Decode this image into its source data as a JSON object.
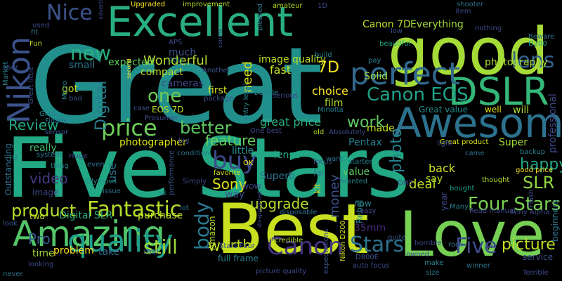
{
  "words": [
    {
      "text": "Great",
      "color": "#21908d"
    },
    {
      "text": "Five Stars",
      "color": "#22a884"
    },
    {
      "text": "good",
      "color": "#a5db36"
    },
    {
      "text": "Best",
      "color": "#c8e020"
    },
    {
      "text": "Love",
      "color": "#75d054"
    },
    {
      "text": "Excellent",
      "color": "#29af7f"
    },
    {
      "text": "Awesome",
      "color": "#2c728e"
    },
    {
      "text": "DSLR",
      "color": "#35b779"
    },
    {
      "text": "Amazing",
      "color": "#52c569"
    },
    {
      "text": "Nikon",
      "color": "#3b528b"
    },
    {
      "text": "perfect",
      "color": "#31688e"
    },
    {
      "text": "Nice",
      "color": "#3b528b"
    },
    {
      "text": "price",
      "color": "#6ece58"
    },
    {
      "text": "quality",
      "color": "#1f9e89"
    },
    {
      "text": "Canon",
      "color": "#46337f"
    },
    {
      "text": "Fantastic",
      "color": "#b5de2b"
    },
    {
      "text": "Stars",
      "color": "#2c728e"
    },
    {
      "text": "Five",
      "color": "#3e4989"
    },
    {
      "text": "Four Stars",
      "color": "#7ad151"
    },
    {
      "text": "better",
      "color": "#5ec962"
    },
    {
      "text": "one",
      "color": "#6ece58"
    },
    {
      "text": "buy",
      "color": "#3e4a89"
    },
    {
      "text": "lens",
      "color": "#34618d"
    },
    {
      "text": "Canon EOS",
      "color": "#1fa188"
    },
    {
      "text": "new",
      "color": "#29af7f"
    },
    {
      "text": "need",
      "color": "#d8e219"
    },
    {
      "text": "Wonderful",
      "color": "#b2dd2d"
    },
    {
      "text": "SLR",
      "color": "#90d743"
    },
    {
      "text": "upgrade",
      "color": "#b5de2b"
    },
    {
      "text": "product",
      "color": "#b5de2b"
    },
    {
      "text": "body",
      "color": "#2a788e"
    },
    {
      "text": "still",
      "color": "#9fda3a"
    },
    {
      "text": "worth",
      "color": "#c2df23"
    },
    {
      "text": "picture",
      "color": "#bddf26"
    },
    {
      "text": "video",
      "color": "#443b84"
    },
    {
      "text": "Review",
      "color": "#22a884"
    },
    {
      "text": "happy",
      "color": "#21a685"
    },
    {
      "text": "feature",
      "color": "#65cb5e"
    },
    {
      "text": "Pro",
      "color": "#375b8d"
    },
    {
      "text": "work",
      "color": "#5ec962"
    },
    {
      "text": "Sony",
      "color": "#dde318"
    },
    {
      "text": "fast",
      "color": "#c8e020"
    },
    {
      "text": "7D",
      "color": "#fde725"
    },
    {
      "text": "image quality",
      "color": "#bddf26"
    },
    {
      "text": "photography",
      "color": "#a8db34"
    },
    {
      "text": "Digital",
      "color": "#287c8e"
    },
    {
      "text": "compact",
      "color": "#b8de29"
    },
    {
      "text": "expected",
      "color": "#5ec962"
    },
    {
      "text": "photographer",
      "color": "#dde318"
    },
    {
      "text": "choice",
      "color": "#fde725"
    },
    {
      "text": "great price",
      "color": "#2ab07f"
    },
    {
      "text": "money",
      "color": "#3b528b"
    },
    {
      "text": "photo",
      "color": "#26828e"
    },
    {
      "text": "deal",
      "color": "#c0df25"
    },
    {
      "text": "Pentax",
      "color": "#26828e"
    },
    {
      "text": "use",
      "color": "#2c738e"
    },
    {
      "text": "little",
      "color": "#24878e"
    },
    {
      "text": "lense",
      "color": "#22a884"
    },
    {
      "text": "Superb",
      "color": "#2c738e"
    },
    {
      "text": "way",
      "color": "#3b528b"
    },
    {
      "text": "value",
      "color": "#5ec962"
    },
    {
      "text": "made",
      "color": "#c2df23"
    },
    {
      "text": "Canon 7D",
      "color": "#bddf26"
    },
    {
      "text": "Everything",
      "color": "#a0da39"
    },
    {
      "text": "Solid",
      "color": "#9fda3a"
    },
    {
      "text": "back",
      "color": "#d0e11c"
    },
    {
      "text": "say",
      "color": "#b5de2b"
    },
    {
      "text": "Super",
      "color": "#a2da37"
    },
    {
      "text": "first",
      "color": "#d5e21a"
    },
    {
      "text": "film",
      "color": "#b2dd2d"
    },
    {
      "text": "cameras",
      "color": "#3e4a89"
    },
    {
      "text": "EOS 7D",
      "color": "#b5de2b"
    },
    {
      "text": "got",
      "color": "#bddf26"
    },
    {
      "text": "small",
      "color": "#2c728e"
    },
    {
      "text": "really",
      "color": "#42be71"
    },
    {
      "text": "purchase",
      "color": "#b8de29"
    },
    {
      "text": "Digital SLR",
      "color": "#2ab07f"
    },
    {
      "text": "problem",
      "color": "#fde725"
    },
    {
      "text": "time",
      "color": "#9fda3a"
    },
    {
      "text": "take",
      "color": "#31688e"
    },
    {
      "text": "Amazon",
      "color": "#b5de2b"
    },
    {
      "text": "35mm",
      "color": "#482878"
    },
    {
      "text": "Rebel",
      "color": "#26828e"
    },
    {
      "text": "now",
      "color": "#26828e"
    },
    {
      "text": "image",
      "color": "#3f4788"
    },
    {
      "text": "two",
      "color": "#c8e020"
    },
    {
      "text": "much",
      "color": "#3b528b"
    },
    {
      "text": "Great value",
      "color": "#21908d"
    },
    {
      "text": "well",
      "color": "#dde318"
    },
    {
      "text": "will",
      "color": "#a8db34"
    },
    {
      "text": "Great product",
      "color": "#dde318"
    },
    {
      "text": "good price",
      "color": "#fde725"
    },
    {
      "text": "professional",
      "color": "#3e4a89"
    },
    {
      "text": "beginners",
      "color": "#2c728e"
    },
    {
      "text": "service",
      "color": "#3b528b"
    },
    {
      "text": "Beware",
      "color": "#2c728e"
    },
    {
      "text": "D200",
      "color": "#1f9e89"
    },
    {
      "text": "beautiful",
      "color": "#22a884"
    },
    {
      "text": "Olympus",
      "color": "#24878e"
    },
    {
      "text": "Minolta",
      "color": "#26828e"
    },
    {
      "text": "Outstanding",
      "color": "#2c728e"
    },
    {
      "text": "kit",
      "color": "#c2df23"
    },
    {
      "text": "far",
      "color": "#2a788e"
    },
    {
      "text": "year",
      "color": "#3e4989"
    },
    {
      "text": "bought",
      "color": "#1f9e89"
    },
    {
      "text": "came",
      "color": "#2c728e"
    },
    {
      "text": "thought",
      "color": "#b5de2b"
    },
    {
      "text": "Sony Alpha",
      "color": "#3e4989"
    },
    {
      "text": "full frame",
      "color": "#26828e"
    },
    {
      "text": "Stars Four",
      "color": "#3b528b"
    },
    {
      "text": "Incredible",
      "color": "#b2dd2d"
    },
    {
      "text": "Nikon D200",
      "color": "#d0e11c"
    },
    {
      "text": "D800E",
      "color": "#3b528b"
    },
    {
      "text": "auto focus",
      "color": "#3e4989"
    },
    {
      "text": "expectations",
      "color": "#3b528b"
    },
    {
      "text": "picture quality",
      "color": "#3e4989"
    },
    {
      "text": "make",
      "color": "#26828e"
    },
    {
      "text": "size",
      "color": "#2c728e"
    },
    {
      "text": "winner",
      "color": "#2c728e"
    },
    {
      "text": "Terrible",
      "color": "#3e4989"
    },
    {
      "text": "never",
      "color": "#2c728e"
    },
    {
      "text": "looking",
      "color": "#3e4989"
    },
    {
      "text": "Micro",
      "color": "#26828e"
    },
    {
      "text": "look",
      "color": "#3b528b"
    },
    {
      "text": "bad",
      "color": "#3b528b"
    },
    {
      "text": "Fun",
      "color": "#c2df23"
    },
    {
      "text": "fit",
      "color": "#2c728e"
    },
    {
      "text": "used",
      "color": "#3e4989"
    },
    {
      "text": "Market",
      "color": "#26828e"
    },
    {
      "text": "user",
      "color": "#3b528b"
    },
    {
      "text": "Great little",
      "color": "#3e4989"
    },
    {
      "text": "Glad",
      "color": "#26828e"
    },
    {
      "text": "Finally",
      "color": "#2c728e"
    },
    {
      "text": "sensor",
      "color": "#3b528b"
    },
    {
      "text": "IQ",
      "color": "#26828e"
    },
    {
      "text": "system",
      "color": "#2c728e"
    },
    {
      "text": "thing",
      "color": "#26828e"
    },
    {
      "text": "Huge",
      "color": "#3e4989"
    },
    {
      "text": "even",
      "color": "#2c728e"
    },
    {
      "text": "vs",
      "color": "#26828e"
    },
    {
      "text": "issue",
      "color": "#2c728e"
    },
    {
      "text": "Simply",
      "color": "#3e4989"
    },
    {
      "text": "favorite",
      "color": "#d0e11c"
    },
    {
      "text": "OK",
      "color": "#fde725"
    },
    {
      "text": "WOW",
      "color": "#3e4989"
    },
    {
      "text": "performance",
      "color": "#3b528b"
    },
    {
      "text": "condition",
      "color": "#2c728e"
    },
    {
      "text": "big",
      "color": "#3e4989"
    },
    {
      "text": "Another",
      "color": "#3b528b"
    },
    {
      "text": "20D",
      "color": "#26828e"
    },
    {
      "text": "APS",
      "color": "#3e4989"
    },
    {
      "text": "Upgraded",
      "color": "#fde725"
    },
    {
      "text": "improvement",
      "color": "#b5de2b"
    },
    {
      "text": "advertised",
      "color": "#3e4989"
    },
    {
      "text": "control",
      "color": "#3b528b"
    },
    {
      "text": "pleased",
      "color": "#2c728e"
    },
    {
      "text": "amateur",
      "color": "#b5de2b"
    },
    {
      "text": "1D",
      "color": "#3e4989"
    },
    {
      "text": "item",
      "color": "#3e4989"
    },
    {
      "text": "shooter",
      "color": "#2c728e"
    },
    {
      "text": "low",
      "color": "#3b528b"
    },
    {
      "text": "nothing",
      "color": "#3e4989"
    },
    {
      "text": "pay",
      "color": "#26828e"
    },
    {
      "text": "build",
      "color": "#26828e"
    },
    {
      "text": "second",
      "color": "#fde725"
    },
    {
      "text": "package",
      "color": "#3b528b"
    },
    {
      "text": "entry level",
      "color": "#26828e"
    },
    {
      "text": "bundle",
      "color": "#26828e"
    },
    {
      "text": "serious",
      "color": "#3e4989"
    },
    {
      "text": "Absolutely",
      "color": "#3e4989"
    },
    {
      "text": "old",
      "color": "#b5de2b"
    },
    {
      "text": "One best",
      "color": "#3e4989"
    },
    {
      "text": "starter",
      "color": "#26828e"
    },
    {
      "text": "want",
      "color": "#2c728e"
    },
    {
      "text": "wanted",
      "color": "#26828e"
    },
    {
      "text": "focus",
      "color": "#3b528b"
    },
    {
      "text": "GH3",
      "color": "#3e4989"
    },
    {
      "text": "light",
      "color": "#3b528b"
    },
    {
      "text": "backup",
      "color": "#26828e"
    },
    {
      "text": "Flash",
      "color": "#3b528b"
    },
    {
      "text": "easy",
      "color": "#3e4989"
    },
    {
      "text": "disposable",
      "color": "#2c728e"
    },
    {
      "text": "disappointed",
      "color": "#3e4989"
    },
    {
      "text": "quite",
      "color": "#3b528b"
    },
    {
      "text": "owned",
      "color": "#3e4989"
    },
    {
      "text": "horrible",
      "color": "#3e4989"
    },
    {
      "text": "rock",
      "color": "#2c728e"
    },
    {
      "text": "yet",
      "color": "#3e4989"
    },
    {
      "text": "Read manual",
      "color": "#3e4989"
    },
    {
      "text": "step",
      "color": "#3b528b"
    },
    {
      "text": "Many",
      "color": "#26828e"
    },
    {
      "text": "lot",
      "color": "#2c728e"
    },
    {
      "text": "case",
      "color": "#3b528b"
    },
    {
      "text": "Prosumer",
      "color": "#3e4989"
    }
  ]
}
